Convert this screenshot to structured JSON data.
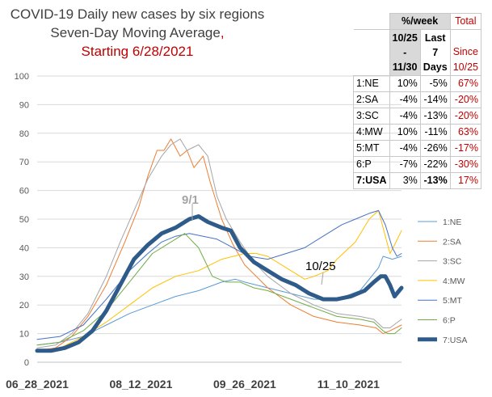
{
  "title_lines": [
    "COVID-19 Daily new cases by six regions",
    "Seven-Day Moving Average",
    "Starting 6/28/2021"
  ],
  "title_comma": ",",
  "annotations": {
    "peak_label": "9/1",
    "trough_label": "10/25"
  },
  "table": {
    "header_pct": "%/week",
    "header_total": "Total",
    "header_c1": [
      "10/25",
      "-",
      "11/30"
    ],
    "header_c2": [
      "Last",
      "7",
      "Days"
    ],
    "header_c3": [
      "Since",
      "10/25"
    ],
    "rows": [
      {
        "label": "1:NE",
        "c1": "10%",
        "c2": "-5%",
        "c3": "67%"
      },
      {
        "label": "2:SA",
        "c1": "-4%",
        "c2": "-14%",
        "c3": "-20%"
      },
      {
        "label": "3:SC",
        "c1": "-4%",
        "c2": "-13%",
        "c3": "-20%"
      },
      {
        "label": "4:MW",
        "c1": "10%",
        "c2": "-11%",
        "c3": "63%"
      },
      {
        "label": "5:MT",
        "c1": "-4%",
        "c2": "-26%",
        "c3": "-17%"
      },
      {
        "label": "6:P",
        "c1": "-7%",
        "c2": "-22%",
        "c3": "-30%"
      },
      {
        "label": "7:USA",
        "c1": "3%",
        "c2": "-13%",
        "c3": "17%"
      }
    ]
  },
  "colors": {
    "title_red": "#c00000",
    "grid": "#d9d9d9",
    "usa": "#2e5b8a"
  },
  "chart_data": {
    "type": "line",
    "x_ticks": [
      "06_28_2021",
      "08_12_2021",
      "09_26_2021",
      "11_10_2021"
    ],
    "ylim": [
      0,
      100
    ],
    "y_ticks": [
      0,
      10,
      20,
      30,
      40,
      50,
      60,
      70,
      80,
      90,
      100
    ],
    "grid": "horizontal",
    "legend_position": "right",
    "series": [
      {
        "name": "1:NE",
        "color": "#5b9bd5",
        "width": 1,
        "points": [
          [
            0,
            6
          ],
          [
            10,
            7
          ],
          [
            20,
            9
          ],
          [
            30,
            13
          ],
          [
            40,
            17
          ],
          [
            50,
            20
          ],
          [
            60,
            23
          ],
          [
            70,
            25
          ],
          [
            80,
            28
          ],
          [
            86,
            29
          ],
          [
            90,
            28
          ],
          [
            100,
            26
          ],
          [
            110,
            24
          ],
          [
            120,
            22
          ],
          [
            130,
            22
          ],
          [
            140,
            25
          ],
          [
            145,
            30
          ],
          [
            148,
            33
          ],
          [
            150,
            37
          ],
          [
            154,
            36
          ],
          [
            158,
            37
          ]
        ]
      },
      {
        "name": "2:SA",
        "color": "#ed7d31",
        "width": 1,
        "points": [
          [
            0,
            4
          ],
          [
            8,
            5
          ],
          [
            15,
            9
          ],
          [
            22,
            16
          ],
          [
            30,
            27
          ],
          [
            38,
            42
          ],
          [
            44,
            54
          ],
          [
            48,
            65
          ],
          [
            52,
            74
          ],
          [
            55,
            74
          ],
          [
            58,
            78
          ],
          [
            62,
            72
          ],
          [
            65,
            74
          ],
          [
            68,
            68
          ],
          [
            72,
            72
          ],
          [
            75,
            63
          ],
          [
            80,
            50
          ],
          [
            85,
            41
          ],
          [
            90,
            34
          ],
          [
            95,
            30
          ],
          [
            100,
            26
          ],
          [
            110,
            20
          ],
          [
            120,
            16
          ],
          [
            130,
            14
          ],
          [
            140,
            13
          ],
          [
            147,
            12
          ],
          [
            150,
            10
          ],
          [
            153,
            11
          ],
          [
            158,
            13
          ]
        ]
      },
      {
        "name": "3:SC",
        "color": "#a5a5a5",
        "width": 1,
        "points": [
          [
            0,
            5
          ],
          [
            8,
            6
          ],
          [
            15,
            10
          ],
          [
            22,
            17
          ],
          [
            30,
            30
          ],
          [
            36,
            42
          ],
          [
            42,
            53
          ],
          [
            48,
            64
          ],
          [
            54,
            72
          ],
          [
            58,
            76
          ],
          [
            62,
            78
          ],
          [
            65,
            74
          ],
          [
            70,
            76
          ],
          [
            74,
            72
          ],
          [
            78,
            58
          ],
          [
            82,
            50
          ],
          [
            88,
            42
          ],
          [
            94,
            35
          ],
          [
            100,
            30
          ],
          [
            110,
            24
          ],
          [
            120,
            20
          ],
          [
            130,
            17
          ],
          [
            140,
            16
          ],
          [
            146,
            15
          ],
          [
            150,
            12
          ],
          [
            153,
            12
          ],
          [
            158,
            15
          ]
        ]
      },
      {
        "name": "4:MW",
        "color": "#ffc000",
        "width": 1,
        "points": [
          [
            0,
            4
          ],
          [
            10,
            5
          ],
          [
            20,
            9
          ],
          [
            30,
            14
          ],
          [
            40,
            20
          ],
          [
            50,
            26
          ],
          [
            60,
            30
          ],
          [
            70,
            32
          ],
          [
            80,
            36
          ],
          [
            90,
            38
          ],
          [
            95,
            38
          ],
          [
            100,
            37
          ],
          [
            110,
            32
          ],
          [
            116,
            29
          ],
          [
            120,
            30
          ],
          [
            126,
            32
          ],
          [
            130,
            36
          ],
          [
            138,
            42
          ],
          [
            144,
            50
          ],
          [
            148,
            53
          ],
          [
            151,
            44
          ],
          [
            153,
            38
          ],
          [
            155,
            41
          ],
          [
            158,
            46
          ]
        ]
      },
      {
        "name": "5:MT",
        "color": "#4472c4",
        "width": 1,
        "points": [
          [
            0,
            8
          ],
          [
            10,
            9
          ],
          [
            20,
            13
          ],
          [
            30,
            22
          ],
          [
            40,
            32
          ],
          [
            48,
            38
          ],
          [
            54,
            42
          ],
          [
            60,
            44
          ],
          [
            66,
            45
          ],
          [
            72,
            44
          ],
          [
            78,
            43
          ],
          [
            85,
            40
          ],
          [
            92,
            37
          ],
          [
            100,
            36
          ],
          [
            108,
            38
          ],
          [
            116,
            40
          ],
          [
            124,
            44
          ],
          [
            132,
            48
          ],
          [
            138,
            50
          ],
          [
            144,
            52
          ],
          [
            148,
            53
          ],
          [
            151,
            48
          ],
          [
            154,
            40
          ],
          [
            156,
            37
          ],
          [
            158,
            38
          ]
        ]
      },
      {
        "name": "6:P",
        "color": "#70ad47",
        "width": 1,
        "points": [
          [
            0,
            6
          ],
          [
            10,
            7
          ],
          [
            20,
            11
          ],
          [
            30,
            18
          ],
          [
            40,
            28
          ],
          [
            50,
            38
          ],
          [
            58,
            42
          ],
          [
            64,
            45
          ],
          [
            70,
            40
          ],
          [
            76,
            30
          ],
          [
            82,
            28
          ],
          [
            88,
            28
          ],
          [
            94,
            26
          ],
          [
            100,
            25
          ],
          [
            110,
            22
          ],
          [
            120,
            19
          ],
          [
            130,
            16
          ],
          [
            140,
            15
          ],
          [
            146,
            14
          ],
          [
            150,
            11
          ],
          [
            152,
            10
          ],
          [
            155,
            10
          ],
          [
            158,
            12
          ]
        ]
      },
      {
        "name": "7:USA",
        "color": "#2e5b8a",
        "width": 5,
        "points": [
          [
            0,
            4
          ],
          [
            6,
            4
          ],
          [
            12,
            5
          ],
          [
            18,
            7
          ],
          [
            24,
            11
          ],
          [
            30,
            18
          ],
          [
            36,
            27
          ],
          [
            42,
            36
          ],
          [
            48,
            41
          ],
          [
            54,
            45
          ],
          [
            60,
            47
          ],
          [
            66,
            50
          ],
          [
            70,
            51
          ],
          [
            74,
            49
          ],
          [
            80,
            47
          ],
          [
            84,
            46
          ],
          [
            88,
            40
          ],
          [
            94,
            35
          ],
          [
            100,
            32
          ],
          [
            106,
            29
          ],
          [
            112,
            27
          ],
          [
            118,
            24
          ],
          [
            124,
            22
          ],
          [
            130,
            22
          ],
          [
            136,
            23
          ],
          [
            142,
            25
          ],
          [
            146,
            28
          ],
          [
            149,
            30
          ],
          [
            151,
            30
          ],
          [
            153,
            27
          ],
          [
            155,
            23
          ],
          [
            157,
            25
          ],
          [
            158,
            26
          ]
        ]
      }
    ]
  }
}
